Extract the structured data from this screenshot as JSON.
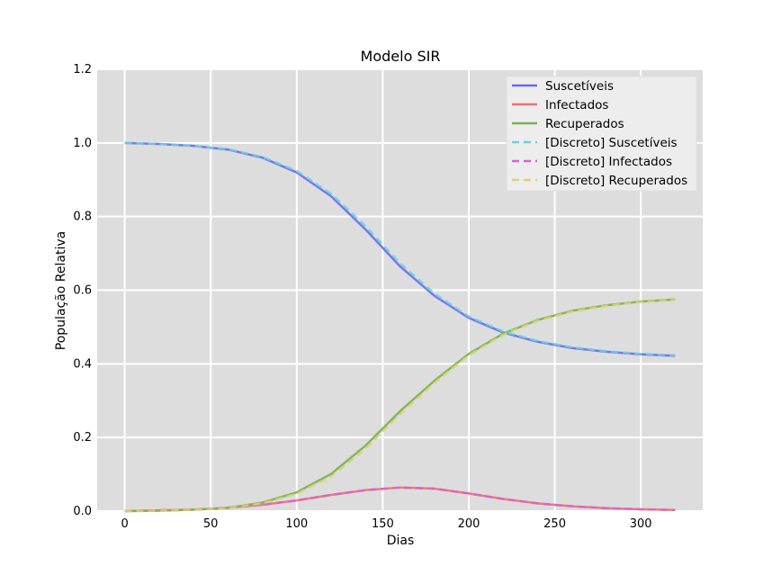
{
  "chart_data": {
    "type": "line",
    "title": "Modelo SIR",
    "xlabel": "Dias",
    "ylabel": "População Relativa",
    "xlim": [
      -16,
      336
    ],
    "ylim": [
      0,
      1.2
    ],
    "xticks": [
      0,
      50,
      100,
      150,
      200,
      250,
      300
    ],
    "yticks": [
      0.0,
      0.2,
      0.4,
      0.6,
      0.8,
      1.0,
      1.2
    ],
    "grid": true,
    "legend_position": "top-right",
    "background": "#dddddd",
    "x": [
      0,
      20,
      40,
      60,
      80,
      100,
      120,
      140,
      160,
      180,
      200,
      220,
      240,
      260,
      280,
      300,
      320
    ],
    "series": [
      {
        "name": "Suscetíveis",
        "color": "#6b6bed",
        "dashed": false,
        "values": [
          1.0,
          0.997,
          0.992,
          0.982,
          0.96,
          0.92,
          0.855,
          0.765,
          0.665,
          0.585,
          0.525,
          0.485,
          0.46,
          0.443,
          0.433,
          0.426,
          0.422
        ]
      },
      {
        "name": "Infectados",
        "color": "#f07070",
        "dashed": false,
        "values": [
          0.0,
          0.002,
          0.004,
          0.009,
          0.017,
          0.029,
          0.044,
          0.057,
          0.064,
          0.061,
          0.048,
          0.033,
          0.021,
          0.013,
          0.008,
          0.005,
          0.003
        ]
      },
      {
        "name": "Recuperados",
        "color": "#77b255",
        "dashed": false,
        "values": [
          0.0,
          0.001,
          0.004,
          0.009,
          0.023,
          0.051,
          0.101,
          0.178,
          0.271,
          0.354,
          0.427,
          0.482,
          0.519,
          0.544,
          0.559,
          0.569,
          0.575
        ]
      },
      {
        "name": "[Discreto] Suscetíveis",
        "color": "#66d3e0",
        "dashed": true,
        "values": [
          1.0,
          0.997,
          0.992,
          0.983,
          0.962,
          0.924,
          0.862,
          0.774,
          0.673,
          0.591,
          0.529,
          0.488,
          0.462,
          0.445,
          0.434,
          0.427,
          0.423
        ]
      },
      {
        "name": "[Discreto] Infectados",
        "color": "#d563d0",
        "dashed": true,
        "values": [
          0.0,
          0.002,
          0.004,
          0.009,
          0.017,
          0.029,
          0.044,
          0.057,
          0.064,
          0.061,
          0.048,
          0.033,
          0.021,
          0.013,
          0.008,
          0.005,
          0.003
        ]
      },
      {
        "name": "[Discreto] Recuperados",
        "color": "#dcd46a",
        "dashed": true,
        "values": [
          0.0,
          0.001,
          0.004,
          0.008,
          0.021,
          0.047,
          0.094,
          0.169,
          0.263,
          0.348,
          0.423,
          0.479,
          0.517,
          0.542,
          0.558,
          0.568,
          0.574
        ]
      }
    ]
  }
}
